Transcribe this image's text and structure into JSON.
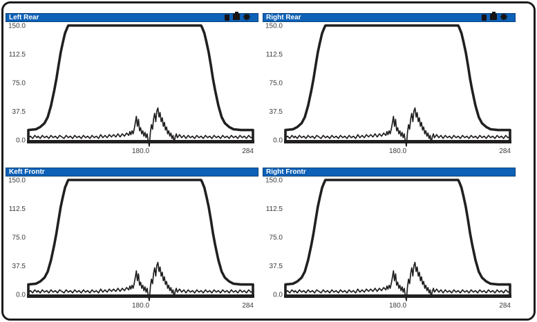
{
  "window": {
    "background_color": "#ffffff",
    "border_color": "#1b1b1b"
  },
  "chart_data": {
    "type": "line",
    "panels": [
      {
        "title": "Left Rear",
        "has_icons": true
      },
      {
        "title": "Right Rear",
        "has_icons": true
      },
      {
        "title": "Keft Frontr",
        "has_icons": false
      },
      {
        "title": "Right Frontr",
        "has_icons": false
      }
    ],
    "titlebar_color": "#0d61b7",
    "line_color": "#211f1f",
    "label_color": "#3a3a3a",
    "xlim": [
      76,
      284
    ],
    "ylim": [
      0,
      150
    ],
    "ytick_labels": [
      "150.0",
      "112.5",
      "75.0",
      "37.5",
      "0.0"
    ],
    "ytick_values": [
      150,
      112.5,
      75,
      37.5,
      0
    ],
    "xticks": [
      {
        "value": 180,
        "label": "180.0",
        "align": "middle"
      },
      {
        "value": 284,
        "label": "284",
        "align": "end"
      }
    ],
    "grid": false,
    "legend": "none",
    "icon_names": [
      "filled-square-icon",
      "window-tab-icon",
      "sun-burst-icon"
    ],
    "envelope_series": [
      [
        76,
        13
      ],
      [
        83,
        14
      ],
      [
        87,
        17
      ],
      [
        91,
        22
      ],
      [
        94,
        30
      ],
      [
        97,
        45
      ],
      [
        100,
        65
      ],
      [
        102,
        80
      ],
      [
        104,
        98
      ],
      [
        106,
        115
      ],
      [
        108,
        128
      ],
      [
        110,
        140
      ],
      [
        112,
        147
      ],
      [
        113,
        150
      ],
      [
        236,
        150
      ],
      [
        237,
        147
      ],
      [
        239,
        140
      ],
      [
        241,
        128
      ],
      [
        243,
        115
      ],
      [
        245,
        98
      ],
      [
        247,
        80
      ],
      [
        249,
        65
      ],
      [
        252,
        45
      ],
      [
        255,
        30
      ],
      [
        258,
        22
      ],
      [
        262,
        17
      ],
      [
        266,
        14
      ],
      [
        273,
        13
      ],
      [
        284,
        13
      ]
    ],
    "signal_series": [
      [
        76,
        3
      ],
      [
        78,
        5
      ],
      [
        80,
        2
      ],
      [
        82,
        6
      ],
      [
        84,
        3
      ],
      [
        85,
        5
      ],
      [
        87,
        2
      ],
      [
        89,
        6
      ],
      [
        91,
        3
      ],
      [
        93,
        5
      ],
      [
        95,
        2
      ],
      [
        97,
        6
      ],
      [
        99,
        3
      ],
      [
        101,
        5
      ],
      [
        103,
        2
      ],
      [
        105,
        6
      ],
      [
        107,
        4
      ],
      [
        109,
        2
      ],
      [
        111,
        6
      ],
      [
        113,
        3
      ],
      [
        115,
        5
      ],
      [
        117,
        2
      ],
      [
        119,
        6
      ],
      [
        121,
        3
      ],
      [
        123,
        5
      ],
      [
        125,
        2
      ],
      [
        127,
        6
      ],
      [
        129,
        3
      ],
      [
        131,
        5
      ],
      [
        133,
        2
      ],
      [
        135,
        6
      ],
      [
        137,
        3
      ],
      [
        139,
        5
      ],
      [
        141,
        2
      ],
      [
        143,
        7
      ],
      [
        145,
        3
      ],
      [
        147,
        6
      ],
      [
        149,
        3
      ],
      [
        151,
        7
      ],
      [
        153,
        4
      ],
      [
        155,
        7
      ],
      [
        157,
        4
      ],
      [
        159,
        8
      ],
      [
        161,
        4
      ],
      [
        163,
        8
      ],
      [
        165,
        5
      ],
      [
        167,
        9
      ],
      [
        169,
        6
      ],
      [
        170,
        11
      ],
      [
        171,
        7
      ],
      [
        172,
        12
      ],
      [
        173,
        8
      ],
      [
        174,
        14
      ],
      [
        175,
        22
      ],
      [
        176,
        31
      ],
      [
        177,
        18
      ],
      [
        178,
        27
      ],
      [
        179,
        12
      ],
      [
        180,
        16
      ],
      [
        181,
        8
      ],
      [
        182,
        12
      ],
      [
        183,
        5
      ],
      [
        184,
        10
      ],
      [
        185,
        3
      ],
      [
        186,
        8
      ],
      [
        187,
        -1
      ],
      [
        188,
        -8
      ],
      [
        189,
        10
      ],
      [
        190,
        20
      ],
      [
        191,
        14
      ],
      [
        192,
        28
      ],
      [
        193,
        35
      ],
      [
        194,
        24
      ],
      [
        195,
        38
      ],
      [
        196,
        42
      ],
      [
        197,
        30
      ],
      [
        198,
        36
      ],
      [
        199,
        24
      ],
      [
        200,
        29
      ],
      [
        201,
        18
      ],
      [
        202,
        23
      ],
      [
        203,
        13
      ],
      [
        204,
        17
      ],
      [
        205,
        8
      ],
      [
        206,
        12
      ],
      [
        207,
        5
      ],
      [
        208,
        9
      ],
      [
        209,
        2
      ],
      [
        210,
        6
      ],
      [
        211,
        -4
      ],
      [
        212,
        4
      ],
      [
        213,
        8
      ],
      [
        214,
        3
      ],
      [
        216,
        7
      ],
      [
        218,
        3
      ],
      [
        220,
        6
      ],
      [
        222,
        2
      ],
      [
        224,
        6
      ],
      [
        226,
        3
      ],
      [
        228,
        5
      ],
      [
        230,
        2
      ],
      [
        232,
        6
      ],
      [
        234,
        3
      ],
      [
        236,
        5
      ],
      [
        238,
        2
      ],
      [
        240,
        6
      ],
      [
        242,
        3
      ],
      [
        244,
        5
      ],
      [
        246,
        2
      ],
      [
        248,
        6
      ],
      [
        250,
        3
      ],
      [
        252,
        5
      ],
      [
        254,
        2
      ],
      [
        256,
        6
      ],
      [
        258,
        3
      ],
      [
        260,
        5
      ],
      [
        262,
        2
      ],
      [
        264,
        6
      ],
      [
        266,
        3
      ],
      [
        268,
        5
      ],
      [
        270,
        2
      ],
      [
        272,
        6
      ],
      [
        274,
        3
      ],
      [
        276,
        5
      ],
      [
        278,
        2
      ],
      [
        280,
        6
      ],
      [
        282,
        3
      ],
      [
        284,
        4
      ]
    ]
  }
}
